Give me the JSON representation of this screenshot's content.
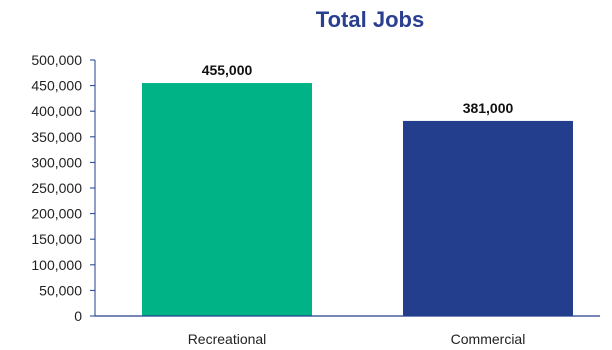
{
  "chart_data": {
    "type": "bar",
    "title": "Total Jobs",
    "categories": [
      "Recreational",
      "Commercial"
    ],
    "values": [
      455000,
      381000
    ],
    "data_labels": [
      "455,000",
      "381,000"
    ],
    "bar_colors": [
      "#00b386",
      "#233e8c"
    ],
    "ylim": [
      0,
      500000
    ],
    "yticks": [
      0,
      50000,
      100000,
      150000,
      200000,
      250000,
      300000,
      350000,
      400000,
      450000,
      500000
    ],
    "ytick_labels": [
      "0",
      "50,000",
      "100,000",
      "150,000",
      "200,000",
      "250,000",
      "300,000",
      "350,000",
      "400,000",
      "450,000",
      "500,000"
    ],
    "grid": false,
    "legend": false,
    "colors": {
      "title": "#2a3f8f",
      "axis": "#233e8c",
      "text": "#222222"
    }
  }
}
